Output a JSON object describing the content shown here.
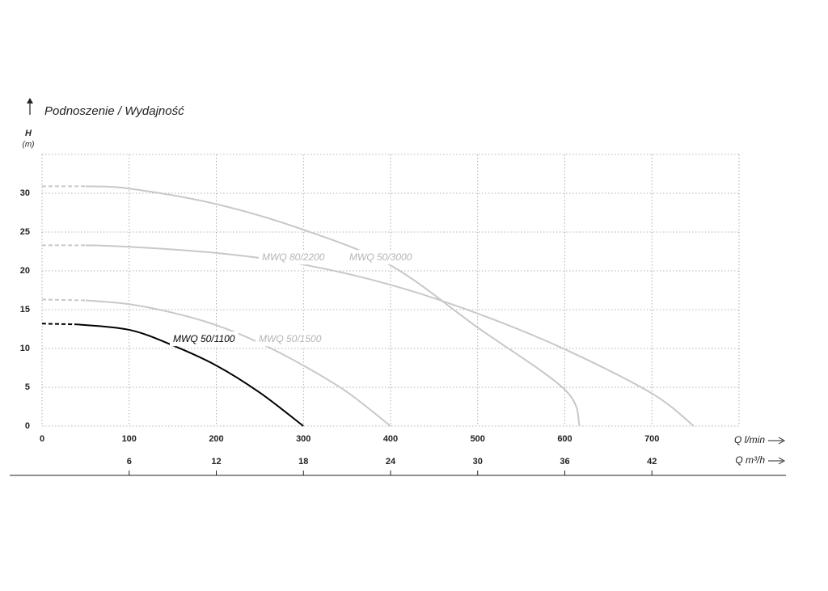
{
  "chart_data": {
    "type": "line",
    "title": "Podnoszenie / Wydajność",
    "y_label": "H",
    "y_unit": "(m)",
    "x_label": "Q l/min",
    "x2_label": "Q m³/h",
    "xlim": [
      0,
      800
    ],
    "xticks": [
      0,
      100,
      200,
      300,
      400,
      500,
      600,
      700
    ],
    "x2lim": [
      0,
      48
    ],
    "x2ticks": [
      6,
      12,
      18,
      24,
      30,
      36,
      42
    ],
    "ylim": [
      0,
      35
    ],
    "yticks": [
      0,
      5,
      10,
      15,
      20,
      25,
      30
    ],
    "grid": true,
    "series": [
      {
        "name": "MWQ 50/1100",
        "color": "#000000",
        "dashed_to": 40,
        "x": [
          0,
          40,
          100,
          150,
          200,
          250,
          300
        ],
        "values": [
          13.2,
          13.1,
          12.4,
          10.4,
          7.8,
          4.3,
          0
        ]
      },
      {
        "name": "MWQ 50/1500",
        "color": "#c8c8c8",
        "dashed_to": 50,
        "x": [
          0,
          50,
          100,
          150,
          200,
          250,
          300,
          350,
          400
        ],
        "values": [
          16.3,
          16.2,
          15.7,
          14.6,
          13.0,
          10.7,
          7.8,
          4.4,
          0
        ]
      },
      {
        "name": "MWQ 80/2200",
        "color": "#c8c8c8",
        "dashed_to": 50,
        "x": [
          0,
          50,
          100,
          200,
          300,
          400,
          500,
          600,
          700,
          748
        ],
        "values": [
          23.3,
          23.3,
          23.1,
          22.3,
          20.8,
          18.2,
          14.5,
          9.9,
          4.2,
          0
        ]
      },
      {
        "name": "MWQ 50/3000",
        "color": "#c8c8c8",
        "dashed_to": 50,
        "x": [
          0,
          50,
          100,
          200,
          300,
          400,
          500,
          600,
          617
        ],
        "values": [
          30.9,
          30.9,
          30.6,
          28.6,
          25.3,
          20.7,
          12.7,
          4.7,
          0
        ]
      }
    ]
  }
}
